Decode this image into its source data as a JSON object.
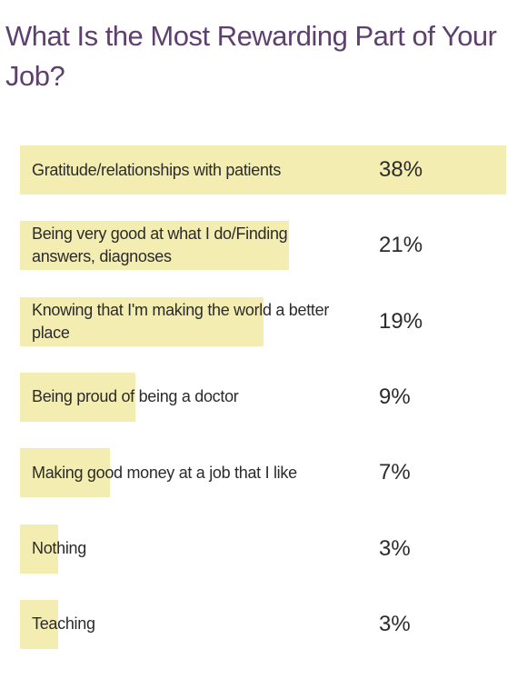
{
  "chart_data": {
    "type": "bar",
    "orientation": "horizontal",
    "title": "What Is the Most Rewarding Part of Your Job?",
    "categories": [
      "Gratitude/relationships with patients",
      "Being very good at what I do/Finding answers, diagnoses",
      "Knowing that I'm making the world a better place",
      "Being proud of being a doctor",
      "Making good money at a job that I like",
      "Nothing",
      "Teaching"
    ],
    "values": [
      38,
      21,
      19,
      9,
      7,
      3,
      3
    ],
    "value_labels": [
      "38%",
      "21%",
      "19%",
      "9%",
      "7%",
      "3%",
      "3%"
    ],
    "color": "#f4edb2"
  }
}
